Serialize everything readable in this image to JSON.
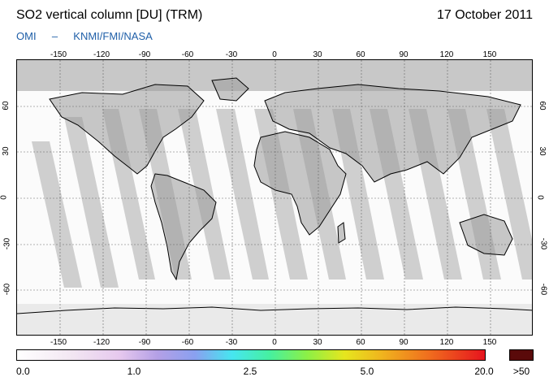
{
  "header": {
    "title": "SO2 vertical column [DU] (TRM)",
    "date": "17 October 2011",
    "credit_source": "OMI",
    "credit_dash": "–",
    "credit_org": "KNMI/FMI/NASA"
  },
  "map": {
    "projection": "equirectangular",
    "longitude_ticks": [
      "-150",
      "-120",
      "-90",
      "-60",
      "-30",
      "0",
      "30",
      "60",
      "90",
      "120",
      "150"
    ],
    "latitude_ticks": [
      "60",
      "30",
      "0",
      "-30",
      "-60"
    ],
    "colors": {
      "land_outline": "#000000",
      "polar_fill": "#c8c8c8",
      "swath_gap_fill": "#c8c8c8",
      "background": "#fbfbfb"
    }
  },
  "colorbar": {
    "labels": [
      "0.0",
      "1.0",
      "2.5",
      "5.0",
      "20.0",
      ">50"
    ],
    "overflow_color": "#5a0a0a"
  }
}
